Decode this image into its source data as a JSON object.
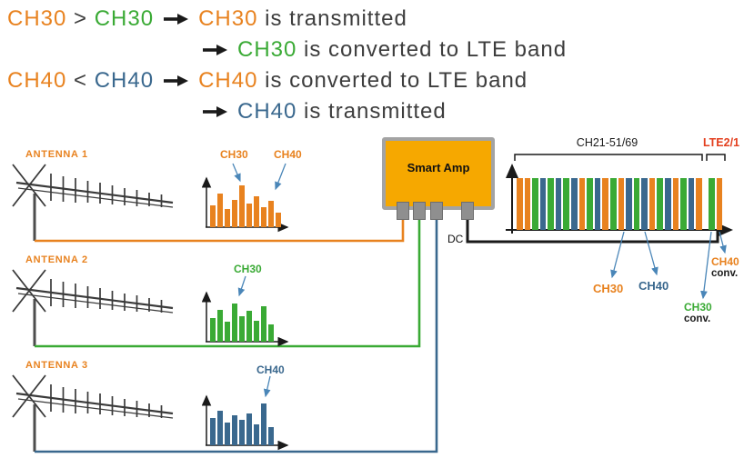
{
  "colors": {
    "orange": "#E8821F",
    "green": "#3AAA35",
    "blue": "#3A688E",
    "red": "#E33F1E",
    "dark": "#3D3D3D",
    "amp_yellow": "#F6A800",
    "connector_gray": "#8F8F8F",
    "callout_blue": "#4A86B8"
  },
  "legend": {
    "lines": [
      {
        "indent": 0,
        "tokens": [
          {
            "text": "CH30",
            "color": "orange"
          },
          {
            "text": " > ",
            "color": "dark"
          },
          {
            "text": "CH30",
            "color": "green"
          },
          {
            "type": "arrow"
          },
          {
            "text": "CH30",
            "color": "orange"
          },
          {
            "text": " is transmitted",
            "color": "dark"
          }
        ]
      },
      {
        "indent": 204,
        "tokens": [
          {
            "type": "arrow"
          },
          {
            "text": "CH30",
            "color": "green"
          },
          {
            "text": " is converted to LTE band",
            "color": "dark"
          }
        ]
      },
      {
        "indent": 0,
        "tokens": [
          {
            "text": "CH40",
            "color": "orange"
          },
          {
            "text": " < ",
            "color": "dark"
          },
          {
            "text": "CH40",
            "color": "blue"
          },
          {
            "type": "arrow"
          },
          {
            "text": "CH40",
            "color": "orange"
          },
          {
            "text": " is converted to LTE band",
            "color": "dark"
          }
        ]
      },
      {
        "indent": 204,
        "tokens": [
          {
            "type": "arrow"
          },
          {
            "text": "CH40",
            "color": "blue"
          },
          {
            "text": " is transmitted",
            "color": "dark"
          }
        ]
      }
    ]
  },
  "antennas": [
    {
      "label": "ANTENNA 1",
      "chart": {
        "type": "bar",
        "color": "orange",
        "labels": [
          "CH30",
          "CH40"
        ],
        "values": [
          52,
          78,
          42,
          64,
          97,
          55,
          72,
          46,
          62,
          34
        ]
      }
    },
    {
      "label": "ANTENNA 2",
      "chart": {
        "type": "bar",
        "color": "green",
        "labels": [
          "CH30"
        ],
        "values": [
          56,
          74,
          46,
          90,
          60,
          72,
          50,
          82,
          40
        ]
      }
    },
    {
      "label": "ANTENNA 3",
      "chart": {
        "type": "bar",
        "color": "blue",
        "labels": [
          "CH40"
        ],
        "values": [
          64,
          80,
          54,
          70,
          60,
          74,
          50,
          97,
          42
        ]
      }
    }
  ],
  "amp": {
    "label": "Smart Amp",
    "dc_label": "DC"
  },
  "spectrum": {
    "band_label": "CH21-51/69",
    "lte_label": "LTE2/1",
    "bars": [
      "orange",
      "orange",
      "green",
      "blue",
      "green",
      "blue",
      "green",
      "blue",
      "orange",
      "green",
      "blue",
      "orange",
      "green",
      "orange",
      "blue",
      "green",
      "blue",
      "orange",
      "green",
      "blue",
      "orange",
      "green",
      "blue",
      "orange"
    ],
    "lte_bars": [
      "green",
      "orange"
    ],
    "callouts": [
      {
        "text": "CH30",
        "color": "orange"
      },
      {
        "text": "CH40",
        "color": "blue"
      },
      {
        "text": "CH40",
        "suffix": "conv.",
        "color": "orange"
      },
      {
        "text": "CH30",
        "suffix": "conv.",
        "color": "green"
      }
    ]
  }
}
